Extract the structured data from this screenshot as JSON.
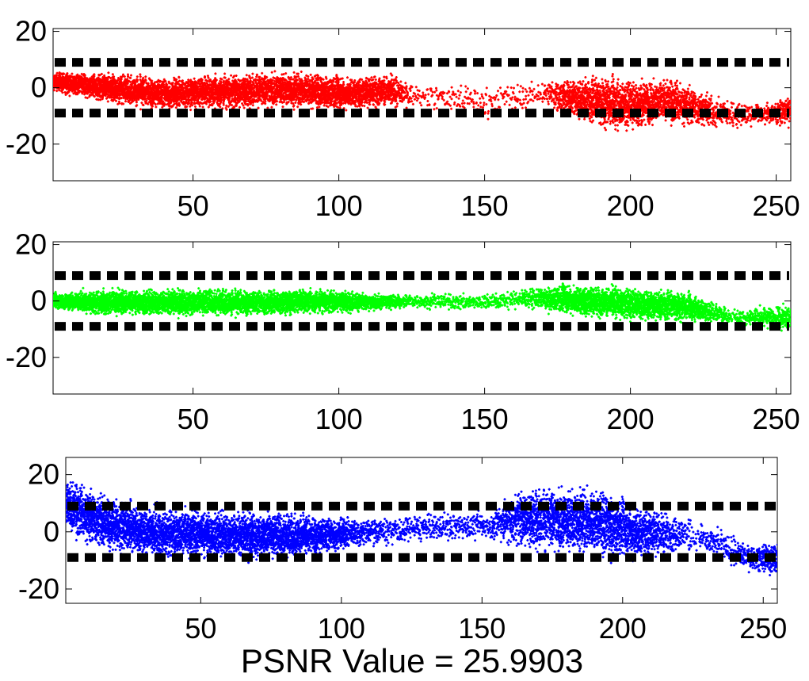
{
  "caption": "PSNR Value = 25.9903",
  "chart_data": [
    {
      "type": "scatter",
      "color": "#ff0000",
      "marker": "dot",
      "xlim": [
        2,
        255
      ],
      "ylim": [
        -33,
        21
      ],
      "xticks": [
        50,
        100,
        150,
        200,
        250
      ],
      "yticks": [
        20,
        0,
        -20
      ],
      "threshold_lines": [
        9,
        -9
      ],
      "density_profile": [
        {
          "x": 2,
          "low": -2,
          "high": 6,
          "density": 1.0
        },
        {
          "x": 20,
          "low": -6,
          "high": 6,
          "density": 1.0
        },
        {
          "x": 40,
          "low": -9,
          "high": 5,
          "density": 1.0
        },
        {
          "x": 60,
          "low": -9,
          "high": 6,
          "density": 1.0
        },
        {
          "x": 80,
          "low": -8,
          "high": 7,
          "density": 1.0
        },
        {
          "x": 100,
          "low": -9,
          "high": 5,
          "density": 0.95
        },
        {
          "x": 116,
          "low": -8,
          "high": 6,
          "density": 0.9
        },
        {
          "x": 125,
          "low": -8,
          "high": 3,
          "density": 0.15
        },
        {
          "x": 150,
          "low": -12,
          "high": 2,
          "density": 0.12
        },
        {
          "x": 170,
          "low": -8,
          "high": 4,
          "density": 0.15
        },
        {
          "x": 180,
          "low": -12,
          "high": 5,
          "density": 0.8
        },
        {
          "x": 195,
          "low": -17,
          "high": 6,
          "density": 1.0
        },
        {
          "x": 215,
          "low": -14,
          "high": 4,
          "density": 0.9
        },
        {
          "x": 230,
          "low": -16,
          "high": -2,
          "density": 0.3
        },
        {
          "x": 245,
          "low": -14,
          "high": -5,
          "density": 0.2
        },
        {
          "x": 255,
          "low": -14,
          "high": -2,
          "density": 0.7
        }
      ]
    },
    {
      "type": "scatter",
      "color": "#00ff00",
      "marker": "dot",
      "xlim": [
        2,
        255
      ],
      "ylim": [
        -33,
        21
      ],
      "xticks": [
        50,
        100,
        150,
        200,
        250
      ],
      "yticks": [
        20,
        0,
        -20
      ],
      "threshold_lines": [
        9,
        -9
      ],
      "density_profile": [
        {
          "x": 2,
          "low": -3,
          "high": 3,
          "density": 1.0
        },
        {
          "x": 20,
          "low": -6,
          "high": 5,
          "density": 1.0
        },
        {
          "x": 50,
          "low": -6,
          "high": 5,
          "density": 1.0
        },
        {
          "x": 80,
          "low": -6,
          "high": 5,
          "density": 1.0
        },
        {
          "x": 100,
          "low": -5,
          "high": 5,
          "density": 0.9
        },
        {
          "x": 110,
          "low": -4,
          "high": 3,
          "density": 0.85
        },
        {
          "x": 125,
          "low": -3,
          "high": 3,
          "density": 0.2
        },
        {
          "x": 150,
          "low": -4,
          "high": 3,
          "density": 0.2
        },
        {
          "x": 165,
          "low": -3,
          "high": 5,
          "density": 0.3
        },
        {
          "x": 180,
          "low": -6,
          "high": 7,
          "density": 1.0
        },
        {
          "x": 200,
          "low": -8,
          "high": 6,
          "density": 1.0
        },
        {
          "x": 220,
          "low": -8,
          "high": 4,
          "density": 0.9
        },
        {
          "x": 235,
          "low": -9,
          "high": -2,
          "density": 0.15
        },
        {
          "x": 255,
          "low": -12,
          "high": 0,
          "density": 0.6
        }
      ]
    },
    {
      "type": "scatter",
      "color": "#0000ff",
      "marker": "dot",
      "xlim": [
        2,
        255
      ],
      "ylim": [
        -25,
        26
      ],
      "xticks": [
        50,
        100,
        150,
        200,
        250
      ],
      "yticks": [
        20,
        0,
        -20
      ],
      "threshold_lines": [
        9,
        -9
      ],
      "density_profile": [
        {
          "x": 2,
          "low": -2,
          "high": 20,
          "density": 1.0
        },
        {
          "x": 15,
          "low": -8,
          "high": 15,
          "density": 1.0
        },
        {
          "x": 35,
          "low": -11,
          "high": 10,
          "density": 1.0
        },
        {
          "x": 60,
          "low": -11,
          "high": 9,
          "density": 1.0
        },
        {
          "x": 80,
          "low": -11,
          "high": 8,
          "density": 1.0
        },
        {
          "x": 95,
          "low": -9,
          "high": 7,
          "density": 0.9
        },
        {
          "x": 110,
          "low": -6,
          "high": 6,
          "density": 0.3
        },
        {
          "x": 135,
          "low": -5,
          "high": 8,
          "density": 0.2
        },
        {
          "x": 152,
          "low": -4,
          "high": 8,
          "density": 0.2
        },
        {
          "x": 165,
          "low": -8,
          "high": 18,
          "density": 0.9
        },
        {
          "x": 185,
          "low": -10,
          "high": 18,
          "density": 1.0
        },
        {
          "x": 205,
          "low": -12,
          "high": 12,
          "density": 0.9
        },
        {
          "x": 225,
          "low": -8,
          "high": 6,
          "density": 0.15
        },
        {
          "x": 245,
          "low": -15,
          "high": -3,
          "density": 0.3
        },
        {
          "x": 255,
          "low": -16,
          "high": -3,
          "density": 0.7
        }
      ]
    }
  ]
}
